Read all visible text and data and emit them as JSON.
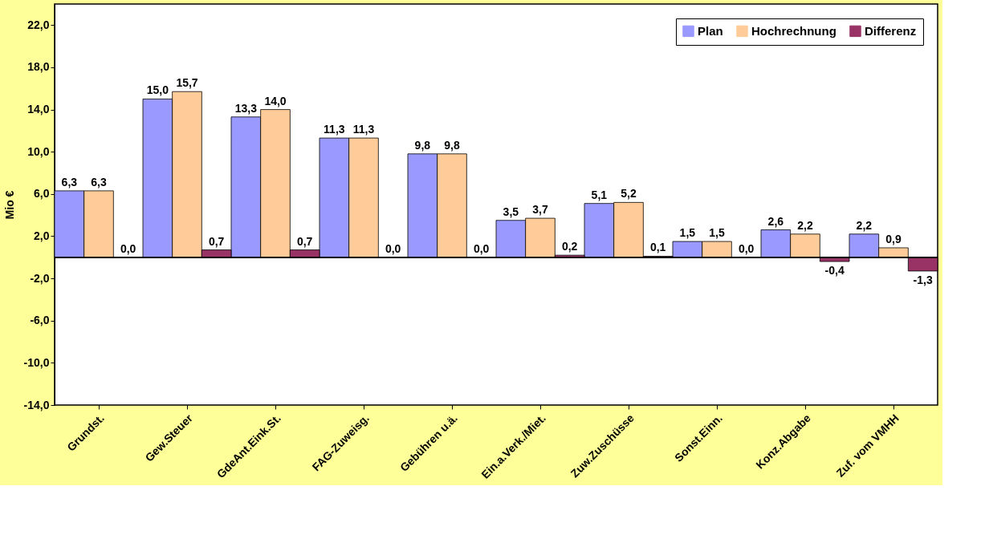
{
  "chart_data": {
    "type": "bar",
    "ylabel": "Mio €",
    "categories": [
      "Grundst.",
      "Gew.Steuer",
      "GdeAnt.Eink.St.",
      "FAG-Zuweisg.",
      "Gebühren u.ä.",
      "Ein.a.Verk./Miet.",
      "Zuw.Zuschüsse",
      "Sonst.Einn.",
      "Konz.Abgabe",
      "Zuf. vom VMHH"
    ],
    "series": [
      {
        "name": "Plan",
        "color": "#9999ff",
        "values": [
          6.3,
          15.0,
          13.3,
          11.3,
          9.8,
          3.5,
          5.1,
          1.5,
          2.6,
          2.2
        ],
        "value_labels": [
          "6,3",
          "15,0",
          "13,3",
          "11,3",
          "9,8",
          "3,5",
          "5,1",
          "1,5",
          "2,6",
          "2,2"
        ]
      },
      {
        "name": "Hochrechnung",
        "color": "#ffcc99",
        "values": [
          6.3,
          15.7,
          14.0,
          11.3,
          9.8,
          3.7,
          5.2,
          1.5,
          2.2,
          0.9
        ],
        "value_labels": [
          "6,3",
          "15,7",
          "14,0",
          "11,3",
          "9,8",
          "3,7",
          "5,2",
          "1,5",
          "2,2",
          "0,9"
        ]
      },
      {
        "name": "Differenz",
        "color": "#993366",
        "values": [
          0.0,
          0.7,
          0.7,
          0.0,
          0.0,
          0.2,
          0.1,
          0.0,
          -0.4,
          -1.3
        ],
        "value_labels": [
          "0,0",
          "0,7",
          "0,7",
          "0,0",
          "0,0",
          "0,2",
          "0,1",
          "0,0",
          "-0,4",
          "-1,3"
        ]
      }
    ],
    "ylim": [
      -14,
      24
    ],
    "yticks": [
      {
        "value": -14,
        "label": "-14,0"
      },
      {
        "value": -10,
        "label": "-10,0"
      },
      {
        "value": -6,
        "label": "-6,0"
      },
      {
        "value": -2,
        "label": "-2,0"
      },
      {
        "value": 2,
        "label": "2,0"
      },
      {
        "value": 6,
        "label": "6,0"
      },
      {
        "value": 10,
        "label": "10,0"
      },
      {
        "value": 14,
        "label": "14,0"
      },
      {
        "value": 18,
        "label": "18,0"
      },
      {
        "value": 22,
        "label": "22,0"
      }
    ],
    "legend": "top right",
    "grid": false
  }
}
